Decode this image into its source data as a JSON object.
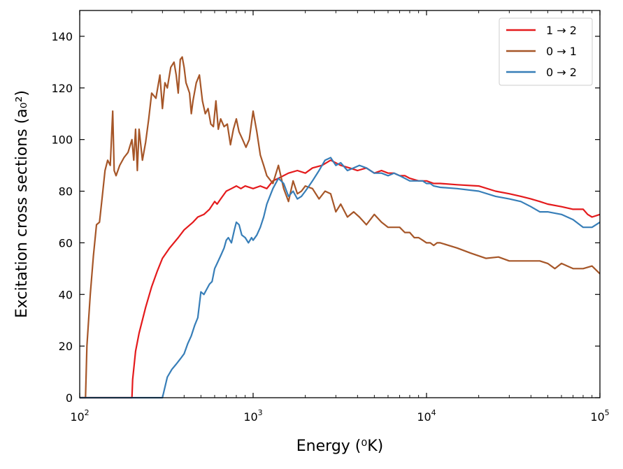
{
  "chart_data": {
    "type": "line",
    "title": "",
    "xlabel": "Energy (⁰K)",
    "ylabel": "Excitation cross sections (a₀²)",
    "xscale": "log",
    "xlim": [
      100,
      100000
    ],
    "ylim": [
      0,
      150
    ],
    "grid": false,
    "legend_position": "top-right",
    "x_ticks": [
      {
        "value": 100,
        "base": "10",
        "exp": "2"
      },
      {
        "value": 1000,
        "base": "10",
        "exp": "3"
      },
      {
        "value": 10000,
        "base": "10",
        "exp": "4"
      },
      {
        "value": 100000,
        "base": "10",
        "exp": "5"
      }
    ],
    "y_ticks": [
      {
        "value": 0,
        "label": "0"
      },
      {
        "value": 20,
        "label": "20"
      },
      {
        "value": 40,
        "label": "40"
      },
      {
        "value": 60,
        "label": "60"
      },
      {
        "value": 80,
        "label": "80"
      },
      {
        "value": 100,
        "label": "100"
      },
      {
        "value": 120,
        "label": "120"
      },
      {
        "value": 140,
        "label": "140"
      }
    ],
    "series": [
      {
        "name": "1 → 2",
        "color": "#e41a1c",
        "x": [
          100,
          200,
          202,
          210,
          220,
          240,
          260,
          280,
          300,
          330,
          370,
          400,
          450,
          480,
          520,
          560,
          600,
          620,
          650,
          700,
          750,
          800,
          850,
          900,
          1000,
          1100,
          1200,
          1300,
          1400,
          1600,
          1800,
          2000,
          2200,
          2500,
          2800,
          3200,
          3600,
          4000,
          4500,
          5000,
          5500,
          6000,
          6500,
          7000,
          7500,
          8000,
          9000,
          10000,
          11000,
          12000,
          15000,
          20000,
          25000,
          30000,
          35000,
          40000,
          45000,
          50000,
          60000,
          70000,
          80000,
          85000,
          90000,
          100000
        ],
        "y": [
          0,
          0,
          7,
          18,
          25,
          35,
          43,
          49,
          54,
          58,
          62,
          65,
          68,
          70,
          71,
          73,
          76,
          75,
          77,
          80,
          81,
          82,
          81,
          82,
          81,
          82,
          81,
          84,
          85,
          87,
          88,
          87,
          89,
          90,
          92,
          90,
          89,
          88,
          89,
          87,
          88,
          87,
          87,
          86,
          86,
          85,
          84,
          84,
          83,
          83,
          82.5,
          82,
          80,
          79,
          78,
          77,
          76,
          75,
          74,
          73,
          73,
          71,
          70,
          71
        ]
      },
      {
        "name": "0 → 1",
        "color": "#a65628",
        "x": [
          100,
          108,
          110,
          115,
          120,
          125,
          130,
          135,
          140,
          145,
          150,
          155,
          158,
          162,
          170,
          180,
          190,
          200,
          205,
          210,
          215,
          220,
          230,
          240,
          250,
          260,
          275,
          290,
          300,
          310,
          320,
          335,
          350,
          360,
          370,
          380,
          390,
          400,
          410,
          420,
          430,
          440,
          450,
          470,
          490,
          510,
          530,
          550,
          570,
          590,
          610,
          630,
          650,
          680,
          710,
          740,
          770,
          800,
          830,
          870,
          910,
          950,
          1000,
          1050,
          1100,
          1150,
          1200,
          1300,
          1400,
          1500,
          1600,
          1700,
          1800,
          1900,
          2000,
          2200,
          2400,
          2600,
          2800,
          3000,
          3200,
          3500,
          3800,
          4100,
          4500,
          5000,
          5500,
          6000,
          6500,
          7000,
          7500,
          8000,
          8500,
          9000,
          9500,
          10000,
          10500,
          11000,
          11500,
          12000,
          15000,
          18000,
          22000,
          26000,
          30000,
          35000,
          40000,
          45000,
          50000,
          55000,
          60000,
          70000,
          80000,
          90000,
          100000
        ],
        "y": [
          0,
          0,
          20,
          40,
          55,
          67,
          68,
          78,
          88,
          92,
          90,
          111,
          88,
          86,
          90,
          93,
          95,
          100,
          92,
          104,
          88,
          104,
          92,
          99,
          108,
          118,
          116,
          125,
          112,
          122,
          120,
          128,
          130,
          125,
          118,
          131,
          132,
          128,
          122,
          120,
          118,
          110,
          115,
          122,
          125,
          115,
          110,
          112,
          106,
          105,
          115,
          104,
          108,
          105,
          106,
          98,
          104,
          108,
          103,
          100,
          97,
          100,
          111,
          103,
          94,
          90,
          86,
          83,
          90,
          81,
          76,
          84,
          79,
          80,
          82,
          81,
          77,
          80,
          79,
          72,
          75,
          70,
          72,
          70,
          67,
          71,
          68,
          66,
          66,
          66,
          64,
          64,
          62,
          62,
          61,
          60,
          60,
          59,
          60,
          60,
          58,
          56,
          54,
          54.5,
          53,
          53,
          53,
          53,
          52,
          50,
          52,
          50,
          50,
          51,
          48
        ]
      },
      {
        "name": "0 → 2",
        "color": "#377eb8",
        "x": [
          100,
          300,
          320,
          340,
          360,
          380,
          400,
          420,
          440,
          460,
          480,
          500,
          520,
          540,
          560,
          580,
          600,
          620,
          650,
          680,
          700,
          720,
          750,
          780,
          800,
          830,
          860,
          900,
          940,
          980,
          1000,
          1050,
          1100,
          1150,
          1200,
          1300,
          1400,
          1500,
          1600,
          1700,
          1800,
          1900,
          2000,
          2100,
          2200,
          2400,
          2600,
          2800,
          3000,
          3200,
          3500,
          3800,
          4100,
          4500,
          5000,
          5500,
          6000,
          6500,
          7000,
          7500,
          8000,
          8500,
          9000,
          9500,
          10000,
          10500,
          11000,
          12000,
          15000,
          20000,
          25000,
          30000,
          35000,
          40000,
          45000,
          50000,
          60000,
          70000,
          80000,
          90000,
          100000
        ],
        "y": [
          0,
          0,
          8,
          11,
          13,
          15,
          17,
          21,
          24,
          28,
          31,
          41,
          40,
          42,
          44,
          45,
          50,
          52,
          55,
          58,
          61,
          62,
          60,
          65,
          68,
          67,
          63,
          62,
          60,
          62,
          61,
          63,
          66,
          70,
          75,
          81,
          85,
          83,
          78,
          80,
          77,
          78,
          80,
          82,
          84,
          88,
          92,
          93,
          90,
          91,
          88,
          89,
          90,
          89,
          87,
          87,
          86,
          87,
          86,
          85,
          84,
          84,
          84,
          84,
          83,
          83,
          82,
          81.5,
          81,
          80,
          78,
          77,
          76,
          74,
          72,
          72,
          71,
          69,
          66,
          66,
          68
        ]
      }
    ]
  }
}
